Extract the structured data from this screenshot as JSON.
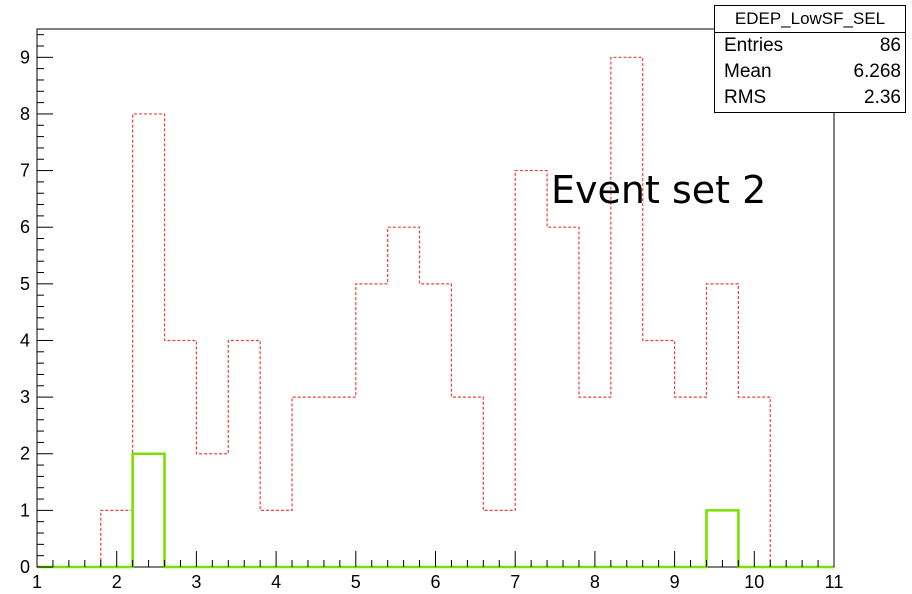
{
  "chart_data": {
    "type": "bar",
    "style": "step-histogram",
    "title": "",
    "xlabel": "",
    "ylabel": "",
    "xlim": [
      1,
      11
    ],
    "ylim": [
      0,
      9.5
    ],
    "bin_edges": [
      1.0,
      1.4,
      1.8,
      2.2,
      2.6,
      3.0,
      3.4,
      3.8,
      4.2,
      4.6,
      5.0,
      5.4,
      5.8,
      6.2,
      6.6,
      7.0,
      7.4,
      7.8,
      8.2,
      8.6,
      9.0,
      9.4,
      9.8,
      10.2,
      10.6,
      11.0
    ],
    "series": [
      {
        "style": "dashed",
        "color": "#e8403a",
        "values": [
          0,
          0,
          1,
          8,
          4,
          2,
          4,
          1,
          3,
          3,
          5,
          6,
          5,
          3,
          1,
          7,
          6,
          3,
          9,
          4,
          3,
          5,
          3,
          0,
          0
        ]
      },
      {
        "style": "solid",
        "color": "#7be000",
        "values": [
          0,
          0,
          0,
          2,
          0,
          0,
          0,
          0,
          0,
          0,
          0,
          0,
          0,
          0,
          0,
          0,
          0,
          0,
          0,
          0,
          0,
          1,
          0,
          0,
          0
        ]
      }
    ],
    "xticks": [
      "1",
      "2",
      "3",
      "4",
      "5",
      "6",
      "7",
      "8",
      "9",
      "10",
      "11"
    ],
    "yticks": [
      "0",
      "1",
      "2",
      "3",
      "4",
      "5",
      "6",
      "7",
      "8",
      "9"
    ],
    "annotation": "Event set 2",
    "grid": false
  },
  "stats": {
    "title": "EDEP_LowSF_SEL",
    "rows": [
      {
        "label": "Entries",
        "value": "86"
      },
      {
        "label": "Mean",
        "value": "6.268"
      },
      {
        "label": "RMS",
        "value": "2.36"
      }
    ]
  }
}
